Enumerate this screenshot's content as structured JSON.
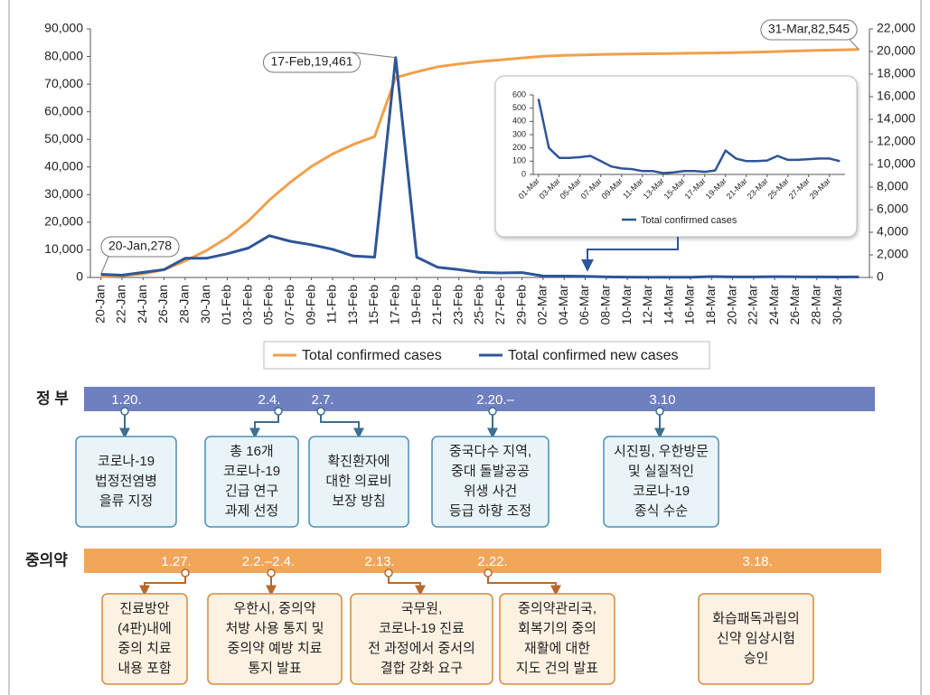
{
  "chart_data": [
    {
      "type": "line",
      "categories": [
        "20-Jan",
        "22-Jan",
        "24-Jan",
        "26-Jan",
        "28-Jan",
        "30-Jan",
        "01-Feb",
        "03-Feb",
        "05-Feb",
        "07-Feb",
        "09-Feb",
        "11-Feb",
        "13-Feb",
        "15-Feb",
        "17-Feb",
        "19-Feb",
        "21-Feb",
        "23-Feb",
        "25-Feb",
        "27-Feb",
        "29-Feb",
        "02-Mar",
        "04-Mar",
        "06-Mar",
        "08-Mar",
        "10-Mar",
        "12-Mar",
        "14-Mar",
        "16-Mar",
        "18-Mar",
        "20-Mar",
        "22-Mar",
        "24-Mar",
        "26-Mar",
        "28-Mar",
        "30-Mar",
        null
      ],
      "series": [
        {
          "name": "Total confirmed cases",
          "color": "#f0a04b",
          "axis": "y",
          "values": [
            278,
            600,
            1300,
            2800,
            6000,
            9700,
            14400,
            20400,
            28000,
            34500,
            40200,
            44700,
            48200,
            51000,
            72400,
            74500,
            76300,
            77300,
            78200,
            78800,
            79500,
            80100,
            80400,
            80600,
            80800,
            80900,
            81000,
            81100,
            81200,
            81300,
            81400,
            81600,
            81800,
            82000,
            82200,
            82400,
            82545
          ]
        },
        {
          "name": "Total confirmed new cases",
          "color": "#2e5597",
          "axis": "y2",
          "values": [
            278,
            200,
            450,
            700,
            1700,
            1700,
            2100,
            2600,
            3700,
            3200,
            2900,
            2500,
            1900,
            1800,
            19461,
            1800,
            900,
            700,
            450,
            400,
            430,
            130,
            120,
            100,
            50,
            30,
            20,
            20,
            20,
            80,
            50,
            50,
            70,
            60,
            50,
            40,
            50
          ]
        }
      ],
      "ylim": [
        0,
        90000
      ],
      "yticks": [
        0,
        {
          "value": 10000,
          "label": "10,000"
        },
        {
          "value": 20000,
          "label": "20,000"
        },
        {
          "value": 30000,
          "label": "30,000"
        },
        {
          "value": 40000,
          "label": "40,000"
        },
        {
          "value": 50000,
          "label": "50,000"
        },
        {
          "value": 60000,
          "label": "60,000"
        },
        {
          "value": 70000,
          "label": "70,000"
        },
        {
          "value": 80000,
          "label": "80,000"
        },
        {
          "value": 90000,
          "label": "90,000"
        }
      ],
      "y2lim": [
        0,
        22000
      ],
      "y2ticks": [
        0,
        {
          "value": 2000,
          "label": "2,000"
        },
        {
          "value": 4000,
          "label": "4,000"
        },
        {
          "value": 6000,
          "label": "6,000"
        },
        {
          "value": 8000,
          "label": "8,000"
        },
        {
          "value": 10000,
          "label": "10,000"
        },
        {
          "value": 12000,
          "label": "12,000"
        },
        {
          "value": 14000,
          "label": "14,000"
        },
        {
          "value": 16000,
          "label": "16,000"
        },
        {
          "value": 18000,
          "label": "18,000"
        },
        {
          "value": 20000,
          "label": "20,000"
        },
        {
          "value": 22000,
          "label": "22,000"
        }
      ],
      "annotations": [
        "20-Jan,278",
        "17-Feb,19,461",
        "31-Mar,82,545"
      ]
    },
    {
      "type": "line",
      "categories": [
        "01-Mar",
        null,
        "03-Mar",
        null,
        "05-Mar",
        null,
        "07-Mar",
        null,
        "09-Mar",
        null,
        "11-Mar",
        null,
        "13-Mar",
        null,
        "15-Mar",
        null,
        "17-Mar",
        null,
        "19-Mar",
        null,
        "21-Mar",
        null,
        "23-Mar",
        null,
        "25-Mar",
        null,
        "27-Mar",
        null,
        "29-Mar",
        null
      ],
      "series": [
        {
          "name": "Total confirmed cases",
          "color": "#2e5597",
          "values": [
            570,
            200,
            125,
            125,
            130,
            140,
            100,
            60,
            45,
            40,
            25,
            25,
            10,
            15,
            25,
            25,
            20,
            30,
            180,
            120,
            100,
            100,
            105,
            140,
            110,
            110,
            115,
            120,
            120,
            100
          ]
        }
      ],
      "ylim": [
        0,
        600
      ],
      "yticks": [
        0,
        100,
        200,
        300,
        400,
        500,
        600
      ]
    }
  ],
  "timeline": {
    "government": {
      "label": "정 부",
      "events": [
        {
          "date": "1.20.",
          "lines": [
            "코로나-19",
            "법정전염병",
            "을류 지정"
          ]
        },
        {
          "date": "2.4.",
          "lines": [
            "총 16개",
            "코로나-19",
            "긴급 연구",
            "과제 선정"
          ]
        },
        {
          "date": "2.7.",
          "lines": [
            "확진환자에",
            "대한 의료비",
            "보장 방침"
          ]
        },
        {
          "date": "2.20.–",
          "lines": [
            "중국다수 지역,",
            "중대 돌발공공",
            "위생 사건",
            "등급 하향 조정"
          ]
        },
        {
          "date": "3.10",
          "lines": [
            "시진핑, 우한방문",
            "및 실질적인",
            "코로나-19",
            "종식 수순"
          ]
        }
      ]
    },
    "tcm": {
      "label": "중의약",
      "events": [
        {
          "date": "1.27.",
          "lines": [
            "진료방안",
            "(4판)내에",
            "중의 치료",
            "내용 포함"
          ]
        },
        {
          "date": "2.2.–2.4.",
          "lines": [
            "우한시, 중의약",
            "처방 사용 통지 및",
            "중의약 예방 치료",
            "통지 발표"
          ]
        },
        {
          "date": "2.13.",
          "lines": [
            "국무원,",
            "코로나-19 진료",
            "전 과정에서 중서의",
            "결합 강화 요구"
          ]
        },
        {
          "date": "2.22.",
          "lines": [
            "중의약관리국,",
            "회복기의 중의",
            "재활에 대한",
            "지도 건의 발표"
          ]
        },
        {
          "date": "3.18.",
          "lines": [
            "화습패독과립의",
            "신약 임상시험",
            "승인"
          ]
        }
      ]
    }
  }
}
